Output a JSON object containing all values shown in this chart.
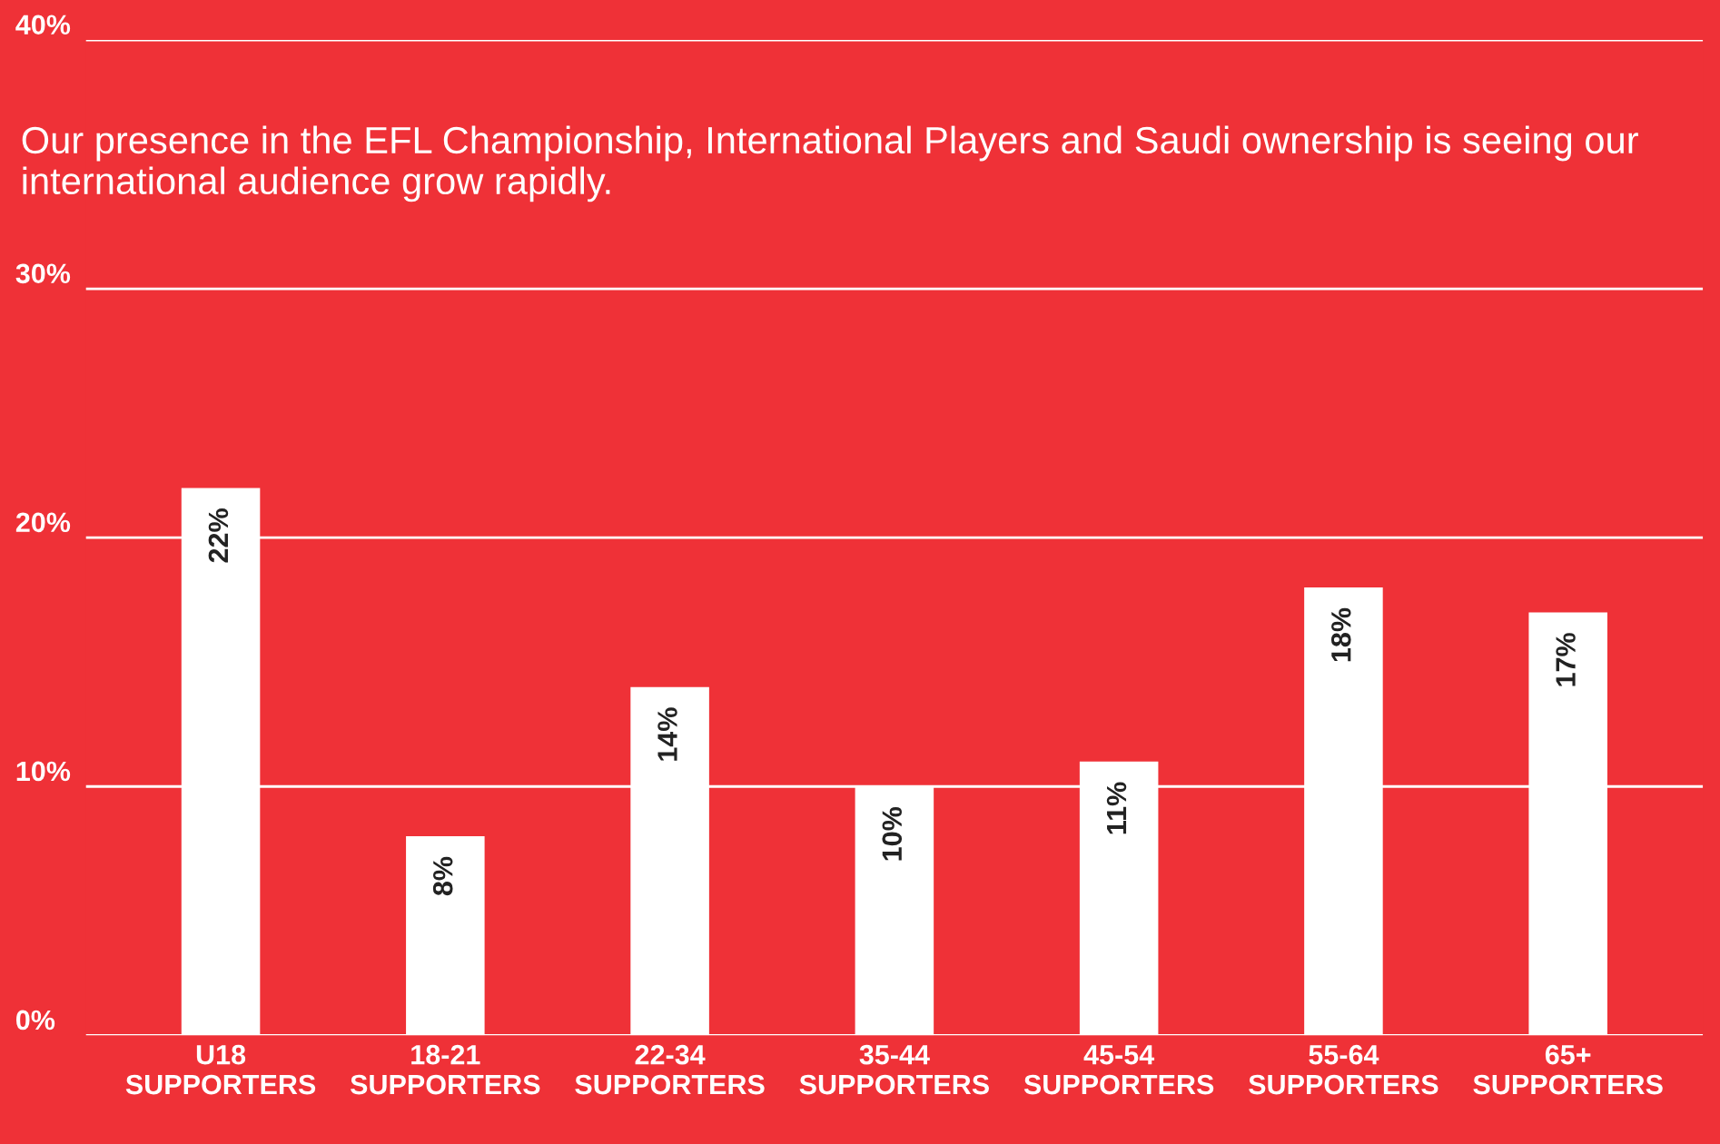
{
  "chart_data": {
    "type": "bar",
    "subtitle": "Our presence in the EFL Championship, International Players and Saudi ownership is seeing our international audience grow rapidly.",
    "categories": [
      "U18\nSUPPORTERS",
      "18-21\nSUPPORTERS",
      "22-34\nSUPPORTERS",
      "35-44\nSUPPORTERS",
      "45-54\nSUPPORTERS",
      "55-64\nSUPPORTERS",
      "65+\nSUPPORTERS"
    ],
    "values": [
      22,
      8,
      14,
      10,
      11,
      18,
      17
    ],
    "value_labels": [
      "22%",
      "8%",
      "14%",
      "10%",
      "11%",
      "18%",
      "17%"
    ],
    "color": "#ffffff",
    "ylim": [
      0,
      40
    ],
    "yticks": [
      {
        "value": 0,
        "label": "0%"
      },
      {
        "value": 10,
        "label": "10%"
      },
      {
        "value": 20,
        "label": "20%"
      },
      {
        "value": 30,
        "label": "30%"
      },
      {
        "value": 40,
        "label": "40%"
      }
    ],
    "grid": "y"
  }
}
